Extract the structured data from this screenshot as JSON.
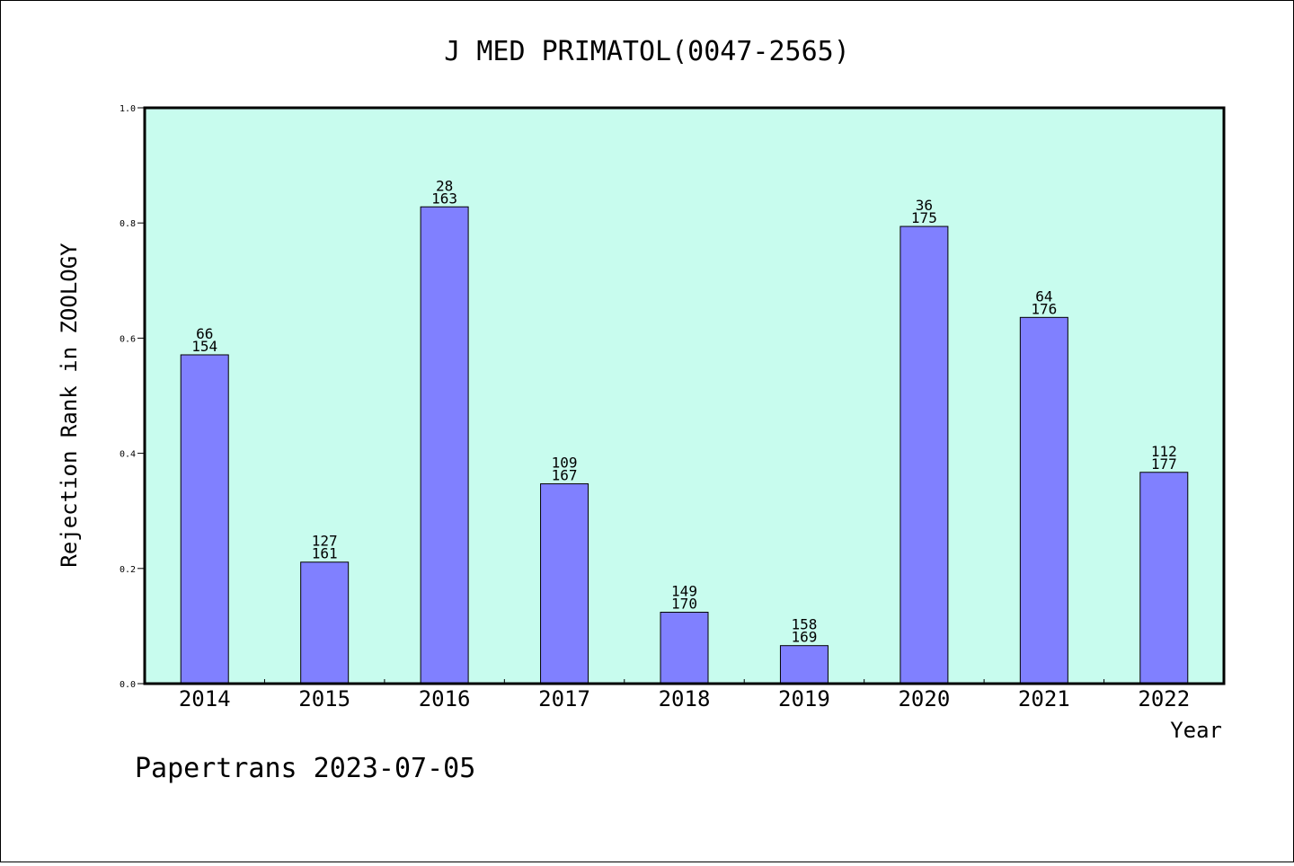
{
  "chart_data": {
    "type": "bar",
    "title": "J MED PRIMATOL(0047-2565)",
    "xlabel": "Year",
    "ylabel": "Rejection Rank in ZOOLOGY",
    "ylim": [
      0,
      1.0
    ],
    "yticks": [
      "0.0",
      "0.2",
      "0.4",
      "0.6",
      "0.8",
      "1.0"
    ],
    "grid": false,
    "categories": [
      "2014",
      "2015",
      "2016",
      "2017",
      "2018",
      "2019",
      "2020",
      "2021",
      "2022"
    ],
    "values": [
      0.571,
      0.211,
      0.828,
      0.347,
      0.124,
      0.066,
      0.794,
      0.636,
      0.367
    ],
    "rank": [
      "66",
      "127",
      "28",
      "109",
      "149",
      "158",
      "36",
      "64",
      "112"
    ],
    "total": [
      "154",
      "161",
      "163",
      "167",
      "170",
      "169",
      "175",
      "176",
      "177"
    ],
    "colors": {
      "plot_background": "#c8fcee",
      "bar_fill": "#8080ff",
      "bar_stroke": "#000000"
    }
  },
  "footer": "Papertrans 2023-07-05"
}
